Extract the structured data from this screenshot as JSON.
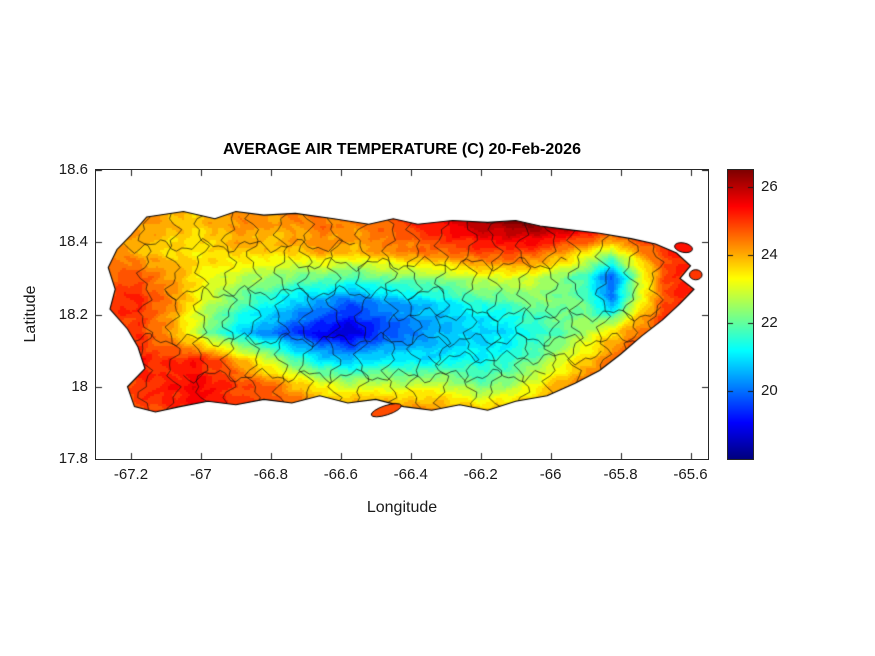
{
  "figure": {
    "background": "#ffffff"
  },
  "chart_data": {
    "type": "heatmap",
    "title": "AVERAGE AIR TEMPERATURE (C) 20-Feb-2026",
    "xlabel": "Longitude",
    "ylabel": "Latitude",
    "xlim": [
      -67.3,
      -65.55
    ],
    "ylim": [
      17.8,
      18.6
    ],
    "xticks": [
      -67.2,
      -67.0,
      -66.8,
      -66.6,
      -66.4,
      -66.2,
      -66.0,
      -65.8,
      -65.6
    ],
    "xtick_labels": [
      "-67.2",
      "-67",
      "-66.8",
      "-66.6",
      "-66.4",
      "-66.2",
      "-66",
      "-65.8",
      "-65.6"
    ],
    "yticks": [
      17.8,
      18.0,
      18.2,
      18.4,
      18.6
    ],
    "ytick_labels": [
      "17.8",
      "18",
      "18.2",
      "18.4",
      "18.6"
    ],
    "colormap": "jet",
    "clim": [
      18.0,
      26.5
    ],
    "colorbar_ticks": [
      20,
      22,
      24,
      26
    ],
    "colorbar_tick_labels": [
      "20",
      "22",
      "24",
      "26"
    ],
    "units": "C",
    "grid": {
      "lons": [
        -67.25,
        -67.175,
        -67.1,
        -67.025,
        -66.95,
        -66.875,
        -66.8,
        -66.725,
        -66.65,
        -66.575,
        -66.5,
        -66.425,
        -66.35,
        -66.275,
        -66.2,
        -66.125,
        -66.05,
        -65.975,
        -65.9,
        -65.825,
        -65.75,
        -65.675,
        -65.6
      ],
      "lats": [
        18.525,
        18.45,
        18.375,
        18.3,
        18.225,
        18.15,
        18.075,
        18.0,
        17.925
      ],
      "temps_c": [
        [
          24.2,
          24.4,
          24.3,
          24.0,
          24.3,
          24.6,
          24.4,
          24.6,
          24.8,
          24.6,
          24.9,
          25.1,
          25.6,
          26.0,
          26.2,
          26.4,
          26.6,
          26.6,
          26.5,
          26.3,
          26.0,
          25.5,
          25.2
        ],
        [
          24.0,
          24.2,
          24.0,
          23.7,
          24.0,
          24.4,
          24.1,
          24.3,
          24.5,
          24.3,
          24.5,
          24.8,
          25.2,
          25.6,
          26.0,
          26.3,
          26.5,
          26.5,
          26.3,
          26.0,
          25.7,
          25.4,
          25.1
        ],
        [
          24.2,
          23.9,
          23.6,
          23.5,
          23.7,
          23.9,
          23.7,
          23.9,
          24.1,
          23.9,
          24.1,
          24.3,
          24.5,
          24.7,
          24.9,
          25.1,
          24.9,
          24.4,
          23.7,
          22.8,
          24.2,
          25.0,
          25.2
        ],
        [
          24.6,
          24.9,
          24.3,
          23.7,
          23.1,
          22.7,
          22.4,
          22.1,
          21.9,
          21.7,
          21.9,
          22.1,
          22.3,
          22.5,
          22.9,
          23.1,
          22.9,
          22.4,
          21.6,
          19.6,
          22.6,
          24.8,
          25.1
        ],
        [
          25.0,
          25.2,
          24.4,
          23.4,
          22.4,
          21.7,
          21.1,
          20.7,
          20.1,
          19.7,
          20.1,
          20.4,
          20.7,
          21.1,
          21.4,
          21.7,
          22.0,
          22.2,
          22.0,
          20.4,
          23.2,
          24.9,
          25.3
        ],
        [
          24.8,
          25.0,
          24.2,
          23.0,
          21.7,
          20.7,
          20.1,
          19.5,
          18.9,
          18.7,
          19.4,
          19.9,
          20.4,
          20.7,
          20.7,
          21.0,
          21.3,
          21.9,
          22.6,
          23.6,
          24.5,
          25.1,
          25.3
        ],
        [
          25.0,
          25.3,
          25.0,
          25.2,
          24.7,
          23.7,
          22.7,
          21.7,
          20.9,
          20.7,
          21.1,
          21.2,
          21.0,
          21.3,
          21.2,
          21.5,
          22.0,
          22.8,
          23.6,
          24.4,
          24.9,
          25.2,
          25.4
        ],
        [
          24.8,
          25.0,
          25.2,
          25.5,
          25.2,
          24.8,
          24.6,
          23.9,
          23.3,
          22.9,
          23.1,
          22.9,
          23.2,
          22.8,
          22.2,
          22.5,
          23.2,
          24.0,
          24.6,
          25.0,
          25.2,
          25.3,
          25.4
        ],
        [
          24.6,
          24.8,
          25.0,
          25.2,
          25.0,
          24.8,
          25.0,
          24.8,
          24.6,
          24.8,
          25.0,
          24.8,
          24.6,
          24.4,
          24.2,
          24.1,
          24.4,
          24.7,
          24.9,
          25.1,
          25.2,
          25.3,
          25.3
        ]
      ]
    },
    "coastline": [
      [
        -67.155,
        18.47
      ],
      [
        -67.05,
        18.485
      ],
      [
        -66.96,
        18.465
      ],
      [
        -66.9,
        18.485
      ],
      [
        -66.82,
        18.475
      ],
      [
        -66.73,
        18.48
      ],
      [
        -66.62,
        18.465
      ],
      [
        -66.52,
        18.45
      ],
      [
        -66.45,
        18.465
      ],
      [
        -66.38,
        18.45
      ],
      [
        -66.28,
        18.46
      ],
      [
        -66.18,
        18.455
      ],
      [
        -66.1,
        18.46
      ],
      [
        -66.03,
        18.445
      ],
      [
        -65.95,
        18.435
      ],
      [
        -65.86,
        18.425
      ],
      [
        -65.77,
        18.41
      ],
      [
        -65.7,
        18.395
      ],
      [
        -65.64,
        18.37
      ],
      [
        -65.6,
        18.335
      ],
      [
        -65.63,
        18.3
      ],
      [
        -65.59,
        18.27
      ],
      [
        -65.63,
        18.23
      ],
      [
        -65.68,
        18.185
      ],
      [
        -65.74,
        18.14
      ],
      [
        -65.8,
        18.09
      ],
      [
        -65.86,
        18.045
      ],
      [
        -65.93,
        18.01
      ],
      [
        -66.01,
        17.975
      ],
      [
        -66.1,
        17.96
      ],
      [
        -66.18,
        17.935
      ],
      [
        -66.26,
        17.95
      ],
      [
        -66.34,
        17.935
      ],
      [
        -66.42,
        17.945
      ],
      [
        -66.5,
        17.965
      ],
      [
        -66.58,
        17.955
      ],
      [
        -66.66,
        17.975
      ],
      [
        -66.74,
        17.955
      ],
      [
        -66.82,
        17.965
      ],
      [
        -66.9,
        17.95
      ],
      [
        -66.98,
        17.96
      ],
      [
        -67.06,
        17.945
      ],
      [
        -67.13,
        17.93
      ],
      [
        -67.19,
        17.945
      ],
      [
        -67.21,
        18.0
      ],
      [
        -67.16,
        18.05
      ],
      [
        -67.18,
        18.11
      ],
      [
        -67.21,
        18.16
      ],
      [
        -67.26,
        18.215
      ],
      [
        -67.245,
        18.27
      ],
      [
        -67.265,
        18.33
      ],
      [
        -67.24,
        18.38
      ],
      [
        -67.2,
        18.42
      ]
    ],
    "islets": [
      {
        "name": "caja-de-muertos",
        "center": [
          -66.47,
          17.935
        ],
        "rx": 0.045,
        "ry": 0.013,
        "rot_deg": -18,
        "temp_c": 24.8
      },
      {
        "name": "northeast-islet",
        "center": [
          -65.62,
          18.385
        ],
        "rx": 0.026,
        "ry": 0.013,
        "rot_deg": 12,
        "temp_c": 25.3
      },
      {
        "name": "east-islet",
        "center": [
          -65.585,
          18.31
        ],
        "rx": 0.018,
        "ry": 0.014,
        "rot_deg": 0,
        "temp_c": 25.0
      }
    ],
    "municipal_boundaries": {
      "meridians": [
        -67.16,
        -67.08,
        -67.0,
        -66.92,
        -66.85,
        -66.77,
        -66.7,
        -66.62,
        -66.54,
        -66.46,
        -66.39,
        -66.31,
        -66.23,
        -66.16,
        -66.08,
        -66.0,
        -65.93,
        -65.85,
        -65.77,
        -65.7
      ],
      "parallels": [
        {
          "lat": 18.13,
          "range": [
            -67.22,
            -65.66
          ]
        },
        {
          "lat": 18.26,
          "range": [
            -67.1,
            -66.3
          ]
        },
        {
          "lat": 18.34,
          "range": [
            -66.75,
            -65.95
          ]
        },
        {
          "lat": 18.03,
          "range": [
            -67.05,
            -66.0
          ]
        },
        {
          "lat": 18.39,
          "range": [
            -67.22,
            -66.55
          ]
        },
        {
          "lat": 18.2,
          "range": [
            -66.45,
            -65.68
          ]
        },
        {
          "lat": 18.08,
          "range": [
            -66.35,
            -65.85
          ]
        }
      ]
    }
  }
}
